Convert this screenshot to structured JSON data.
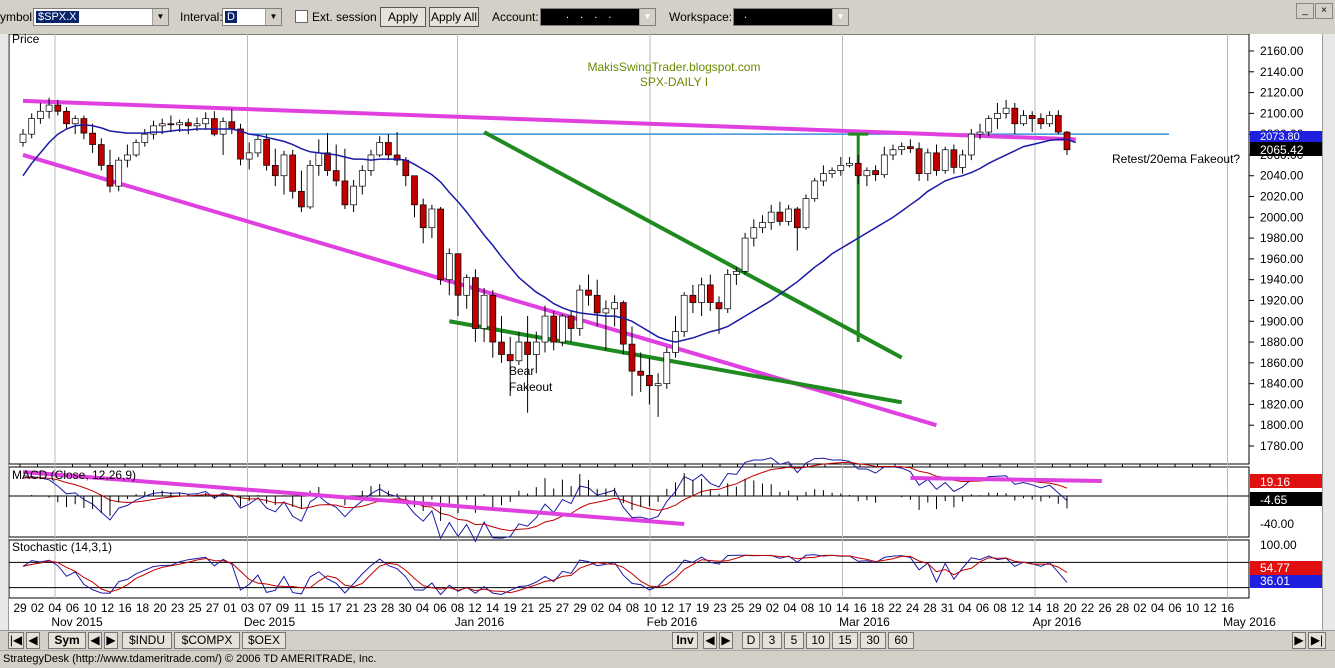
{
  "toolbar": {
    "symbol_label": "ymbol:",
    "symbol_value": "$SPX.X",
    "interval_label": "Interval:",
    "interval_value": "D",
    "ext_session_label": "Ext. session",
    "apply_label": "Apply",
    "apply_all_label": "Apply All",
    "account_label": "Account:",
    "account_value": ". . . .",
    "workspace_label": "Workspace:",
    "workspace_value": ".",
    "icons": [
      "chevron-down-icon",
      "checkbox-icon",
      "minimize-icon",
      "close-icon"
    ]
  },
  "chart": {
    "panel_title": "Price",
    "annotation_1": "MakisSwingTrader.blogspot.com",
    "annotation_2": "SPX-DAILY I",
    "note_bear": "Bear",
    "note_fakeout": "Fakeout",
    "note_retest": "Retest/20ema Fakeout?",
    "last_price": "2065.42",
    "hidden_price": "2073.80",
    "price_ticks": [
      "2160.00",
      "2140.00",
      "2120.00",
      "2100.00",
      "2080.00",
      "2060.00",
      "2040.00",
      "2020.00",
      "2000.00",
      "1980.00",
      "1960.00",
      "1940.00",
      "1920.00",
      "1900.00",
      "1880.00",
      "1860.00",
      "1840.00",
      "1820.00",
      "1800.00",
      "1780.00"
    ],
    "colors": {
      "up": "#ffffff",
      "down": "#c00000",
      "ema": "#1a1aa6",
      "trend_magenta": "#e040e0",
      "trend_green": "#1f8a1f",
      "hline": "#3a8fd6"
    }
  },
  "macd": {
    "title": "MACD (Close, 12,26,9)",
    "value_1": "19.16",
    "value_2": "-4.65",
    "tick": "-40.00"
  },
  "stochastic": {
    "title": "Stochastic (14,3,1)",
    "value_1": "54.77",
    "value_2": "36.01",
    "tick": "100.00"
  },
  "x_axis": {
    "day_labels": [
      "29",
      "02",
      "04",
      "06",
      "10",
      "12",
      "16",
      "18",
      "20",
      "23",
      "25",
      "27",
      "01",
      "03",
      "07",
      "09",
      "11",
      "15",
      "17",
      "21",
      "23",
      "28",
      "30",
      "04",
      "06",
      "08",
      "12",
      "14",
      "19",
      "21",
      "25",
      "27",
      "29",
      "02",
      "04",
      "08",
      "10",
      "12",
      "17",
      "19",
      "23",
      "25",
      "29",
      "02",
      "04",
      "08",
      "10",
      "14",
      "16",
      "18",
      "22",
      "24",
      "28",
      "31",
      "04",
      "06",
      "08",
      "12",
      "14",
      "18",
      "20",
      "22",
      "26",
      "28",
      "02",
      "04",
      "06",
      "10",
      "12",
      "16"
    ],
    "month_labels": [
      "Nov 2015",
      "Dec 2015",
      "Jan 2016",
      "Feb 2016",
      "Mar 2016",
      "Apr 2016",
      "May 2016"
    ]
  },
  "nav": {
    "sym_tab": "Sym",
    "tabs": [
      "$INDU",
      "$COMPX",
      "$OEX"
    ],
    "inv_label": "Inv",
    "periods": [
      "D",
      "3",
      "5",
      "10",
      "15",
      "30",
      "60"
    ]
  },
  "chart_data": {
    "type": "candlestick",
    "symbol": "$SPX.X",
    "interval": "D",
    "ylim": [
      1770,
      2170
    ],
    "ohlc": [
      [
        2072,
        2085,
        2068,
        2080
      ],
      [
        2080,
        2100,
        2076,
        2095
      ],
      [
        2095,
        2110,
        2090,
        2102
      ],
      [
        2102,
        2115,
        2095,
        2108
      ],
      [
        2108,
        2113,
        2098,
        2102
      ],
      [
        2102,
        2106,
        2085,
        2090
      ],
      [
        2090,
        2098,
        2080,
        2095
      ],
      [
        2095,
        2098,
        2075,
        2081
      ],
      [
        2081,
        2090,
        2062,
        2070
      ],
      [
        2070,
        2076,
        2045,
        2050
      ],
      [
        2050,
        2065,
        2024,
        2030
      ],
      [
        2030,
        2058,
        2025,
        2055
      ],
      [
        2055,
        2070,
        2048,
        2060
      ],
      [
        2060,
        2075,
        2058,
        2072
      ],
      [
        2072,
        2085,
        2068,
        2080
      ],
      [
        2080,
        2093,
        2075,
        2088
      ],
      [
        2088,
        2095,
        2080,
        2090
      ],
      [
        2090,
        2098,
        2082,
        2089
      ],
      [
        2089,
        2094,
        2082,
        2091
      ],
      [
        2091,
        2095,
        2080,
        2088
      ],
      [
        2088,
        2096,
        2083,
        2090
      ],
      [
        2090,
        2101,
        2085,
        2095
      ],
      [
        2095,
        2102,
        2078,
        2080
      ],
      [
        2080,
        2096,
        2060,
        2092
      ],
      [
        2092,
        2104,
        2080,
        2085
      ],
      [
        2085,
        2090,
        2050,
        2056
      ],
      [
        2056,
        2072,
        2046,
        2062
      ],
      [
        2062,
        2080,
        2058,
        2075
      ],
      [
        2075,
        2080,
        2045,
        2050
      ],
      [
        2050,
        2066,
        2030,
        2040
      ],
      [
        2040,
        2064,
        2022,
        2060
      ],
      [
        2060,
        2065,
        2018,
        2025
      ],
      [
        2025,
        2045,
        2005,
        2010
      ],
      [
        2010,
        2055,
        2008,
        2050
      ],
      [
        2050,
        2075,
        2040,
        2062
      ],
      [
        2062,
        2081,
        2040,
        2045
      ],
      [
        2045,
        2070,
        2030,
        2035
      ],
      [
        2035,
        2066,
        2008,
        2012
      ],
      [
        2012,
        2036,
        2005,
        2030
      ],
      [
        2030,
        2050,
        2022,
        2045
      ],
      [
        2045,
        2065,
        2040,
        2060
      ],
      [
        2060,
        2078,
        2058,
        2072
      ],
      [
        2072,
        2080,
        2055,
        2060
      ],
      [
        2060,
        2082,
        2050,
        2055
      ],
      [
        2055,
        2058,
        2030,
        2040
      ],
      [
        2040,
        2040,
        2000,
        2012
      ],
      [
        2012,
        2018,
        1975,
        1990
      ],
      [
        1990,
        2012,
        1980,
        2008
      ],
      [
        2008,
        2010,
        1935,
        1940
      ],
      [
        1940,
        1970,
        1925,
        1965
      ],
      [
        1965,
        1962,
        1905,
        1925
      ],
      [
        1925,
        1945,
        1912,
        1942
      ],
      [
        1942,
        1950,
        1880,
        1893
      ],
      [
        1893,
        1932,
        1880,
        1925
      ],
      [
        1925,
        1930,
        1865,
        1880
      ],
      [
        1880,
        1905,
        1860,
        1868
      ],
      [
        1868,
        1885,
        1828,
        1862
      ],
      [
        1862,
        1890,
        1858,
        1880
      ],
      [
        1880,
        1905,
        1812,
        1868
      ],
      [
        1868,
        1890,
        1850,
        1880
      ],
      [
        1880,
        1915,
        1870,
        1905
      ],
      [
        1905,
        1910,
        1872,
        1880
      ],
      [
        1880,
        1907,
        1876,
        1905
      ],
      [
        1905,
        1910,
        1880,
        1893
      ],
      [
        1893,
        1935,
        1886,
        1930
      ],
      [
        1930,
        1945,
        1915,
        1925
      ],
      [
        1925,
        1940,
        1895,
        1908
      ],
      [
        1908,
        1920,
        1872,
        1912
      ],
      [
        1912,
        1925,
        1895,
        1918
      ],
      [
        1918,
        1920,
        1868,
        1878
      ],
      [
        1878,
        1895,
        1828,
        1852
      ],
      [
        1852,
        1870,
        1832,
        1848
      ],
      [
        1848,
        1865,
        1820,
        1838
      ],
      [
        1838,
        1850,
        1808,
        1840
      ],
      [
        1840,
        1875,
        1835,
        1870
      ],
      [
        1870,
        1905,
        1865,
        1890
      ],
      [
        1890,
        1928,
        1885,
        1925
      ],
      [
        1925,
        1935,
        1908,
        1918
      ],
      [
        1918,
        1942,
        1905,
        1935
      ],
      [
        1935,
        1945,
        1910,
        1918
      ],
      [
        1918,
        1924,
        1888,
        1912
      ],
      [
        1912,
        1950,
        1908,
        1945
      ],
      [
        1945,
        1952,
        1935,
        1948
      ],
      [
        1948,
        1985,
        1945,
        1980
      ],
      [
        1980,
        1998,
        1972,
        1990
      ],
      [
        1990,
        2002,
        1985,
        1995
      ],
      [
        1995,
        2012,
        1988,
        2005
      ],
      [
        2005,
        2015,
        1992,
        1996
      ],
      [
        1996,
        2012,
        1992,
        2008
      ],
      [
        2008,
        2010,
        1968,
        1990
      ],
      [
        1990,
        2022,
        1988,
        2018
      ],
      [
        2018,
        2038,
        2015,
        2035
      ],
      [
        2035,
        2050,
        2030,
        2042
      ],
      [
        2042,
        2048,
        2038,
        2045
      ],
      [
        2045,
        2058,
        2040,
        2050
      ],
      [
        2050,
        2058,
        2048,
        2052
      ],
      [
        2052,
        2060,
        2032,
        2040
      ],
      [
        2040,
        2048,
        2030,
        2045
      ],
      [
        2045,
        2050,
        2035,
        2041
      ],
      [
        2041,
        2068,
        2038,
        2060
      ],
      [
        2060,
        2070,
        2055,
        2065
      ],
      [
        2065,
        2072,
        2060,
        2068
      ],
      [
        2068,
        2075,
        2062,
        2066
      ],
      [
        2066,
        2072,
        2035,
        2042
      ],
      [
        2042,
        2066,
        2035,
        2062
      ],
      [
        2062,
        2070,
        2040,
        2045
      ],
      [
        2045,
        2068,
        2042,
        2065
      ],
      [
        2065,
        2070,
        2042,
        2048
      ],
      [
        2048,
        2065,
        2042,
        2060
      ],
      [
        2060,
        2085,
        2055,
        2080
      ],
      [
        2080,
        2090,
        2075,
        2082
      ],
      [
        2082,
        2098,
        2078,
        2095
      ],
      [
        2095,
        2110,
        2085,
        2100
      ],
      [
        2100,
        2113,
        2095,
        2105
      ],
      [
        2105,
        2110,
        2080,
        2090
      ],
      [
        2090,
        2103,
        2088,
        2098
      ],
      [
        2098,
        2102,
        2082,
        2095
      ],
      [
        2095,
        2100,
        2085,
        2090
      ],
      [
        2090,
        2102,
        2087,
        2098
      ],
      [
        2098,
        2103,
        2080,
        2082
      ],
      [
        2082,
        2083,
        2060,
        2065
      ]
    ],
    "ema20": [
      2040,
      2052,
      2062,
      2072,
      2080,
      2085,
      2088,
      2089,
      2088,
      2086,
      2083,
      2082,
      2081,
      2081,
      2081,
      2082,
      2082,
      2083,
      2084,
      2084,
      2085,
      2085,
      2085,
      2085,
      2085,
      2083,
      2080,
      2079,
      2077,
      2075,
      2073,
      2070,
      2066,
      2063,
      2062,
      2061,
      2060,
      2058,
      2056,
      2056,
      2055,
      2056,
      2056,
      2056,
      2055,
      2051,
      2046,
      2041,
      2034,
      2024,
      2015,
      2005,
      1994,
      1983,
      1973,
      1962,
      1952,
      1942,
      1935,
      1928,
      1923,
      1917,
      1913,
      1910,
      1908,
      1907,
      1906,
      1905,
      1905,
      1903,
      1900,
      1895,
      1890,
      1885,
      1882,
      1880,
      1882,
      1884,
      1887,
      1890,
      1892,
      1895,
      1900,
      1905,
      1910,
      1915,
      1920,
      1926,
      1932,
      1938,
      1945,
      1952,
      1958,
      1965,
      1970,
      1975,
      1980,
      1985,
      1990,
      1995,
      2000,
      2006,
      2012,
      2018,
      2025,
      2030,
      2035,
      2038,
      2040,
      2043,
      2047,
      2052,
      2056,
      2060,
      2064,
      2068,
      2070,
      2072,
      2074,
      2075,
      2075,
      2072
    ],
    "lines": {
      "horizontal_level": 2080,
      "magenta_upper": [
        [
          0,
          2112
        ],
        [
          121,
          2075
        ]
      ],
      "magenta_lower": [
        [
          0,
          2060
        ],
        [
          105,
          1800
        ]
      ],
      "green_down": [
        [
          53,
          2082
        ],
        [
          101,
          1865
        ]
      ],
      "green_lower": [
        [
          49,
          1900
        ],
        [
          101,
          1822
        ]
      ],
      "green_vertical": [
        [
          96,
          1880
        ],
        [
          96,
          2080
        ]
      ]
    },
    "macd_value": 19.16,
    "macd_signal": -4.65,
    "stoch_k": 54.77,
    "stoch_d": 36.01
  }
}
